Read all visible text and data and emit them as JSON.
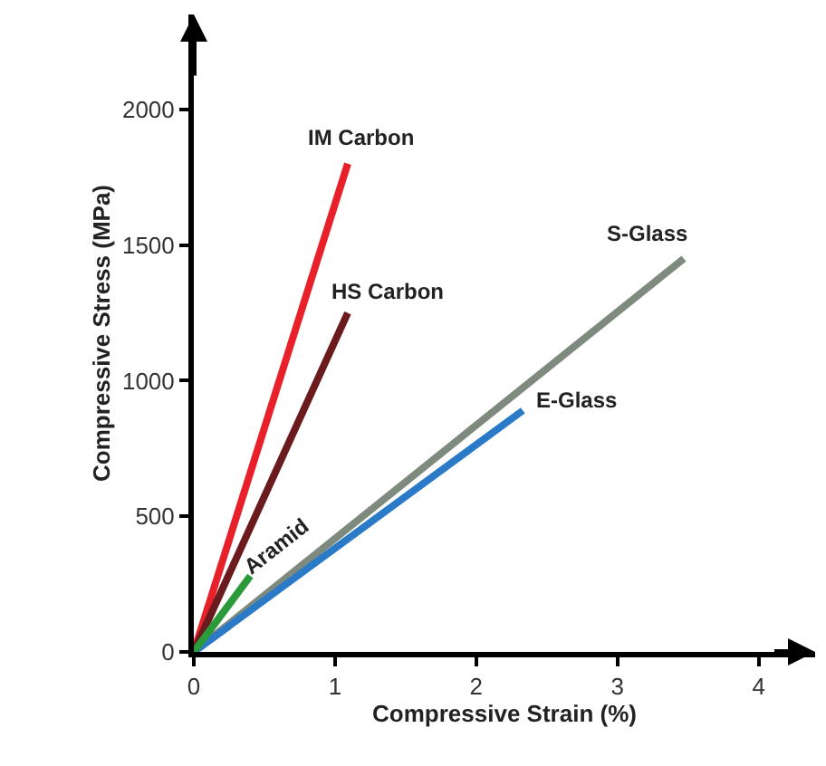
{
  "chart_data": {
    "type": "line",
    "xlabel": "Compressive Strain (%)",
    "ylabel": "Compressive Stress (MPa)",
    "xlim": [
      0,
      4.4
    ],
    "ylim": [
      0,
      2350
    ],
    "xticks": [
      0,
      1,
      2,
      3,
      4
    ],
    "yticks": [
      0,
      500,
      1000,
      1500,
      2000
    ],
    "legend": false,
    "marker": "none",
    "line_style": "solid",
    "series": [
      {
        "name": "IM Carbon",
        "color": "#e8202a",
        "x": [
          0,
          1.09
        ],
        "values": [
          0,
          1800
        ]
      },
      {
        "name": "HS Carbon",
        "color": "#6b1a1e",
        "x": [
          0,
          1.09
        ],
        "values": [
          0,
          1250
        ]
      },
      {
        "name": "S-Glass",
        "color": "#7f8a7f",
        "x": [
          0,
          3.47
        ],
        "values": [
          0,
          1450
        ]
      },
      {
        "name": "E-Glass",
        "color": "#2a7ac8",
        "x": [
          0,
          2.33
        ],
        "values": [
          0,
          890
        ]
      },
      {
        "name": "Aramid",
        "color": "#2a9a3a",
        "x": [
          0,
          0.4
        ],
        "values": [
          0,
          280
        ]
      }
    ]
  }
}
